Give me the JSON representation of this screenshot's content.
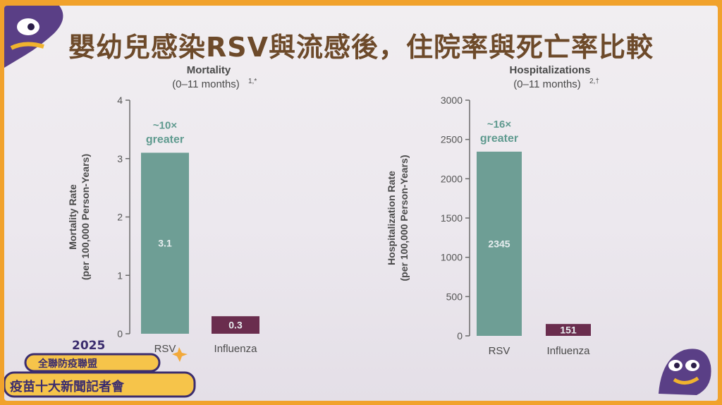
{
  "slide": {
    "title": "嬰幼兒感染RSV與流感後，住院率與死亡率比較",
    "logo_year": "2025",
    "logo_line1": "全聯防疫聯盟",
    "logo_line2": "疫苗十大新聞記者會"
  },
  "colors": {
    "rsv_bar": "#6e9e95",
    "influenza_bar": "#6a2d4e",
    "annotation": "#5f9a8f",
    "title_text": "#6d4a2a",
    "axis_text": "#555555"
  },
  "chart_data": [
    {
      "type": "bar",
      "title": "Mortality",
      "subtitle": "(0–11 months)",
      "subtitle_superscript": "1,*",
      "ylabel_line1": "Mortality Rate",
      "ylabel_line2": "(per 100,000 Person-Years)",
      "ylim": [
        0,
        4
      ],
      "yticks": [
        0,
        1,
        2,
        3,
        4
      ],
      "categories": [
        "RSV",
        "Influenza"
      ],
      "values": [
        3.1,
        0.3
      ],
      "value_labels": [
        "3.1",
        "0.3"
      ],
      "annotation_line1": "~10×",
      "annotation_line2": "greater",
      "grid": false
    },
    {
      "type": "bar",
      "title": "Hospitalizations",
      "subtitle": "(0–11 months)",
      "subtitle_superscript": "2,†",
      "ylabel_line1": "Hospitalization Rate",
      "ylabel_line2": "(per 100,000 Person-Years)",
      "ylim": [
        0,
        3000
      ],
      "yticks": [
        0,
        500,
        1000,
        1500,
        2000,
        2500,
        3000
      ],
      "categories": [
        "RSV",
        "Influenza"
      ],
      "values": [
        2345,
        151
      ],
      "value_labels": [
        "2345",
        "151"
      ],
      "annotation_line1": "~16×",
      "annotation_line2": "greater",
      "grid": false
    }
  ]
}
